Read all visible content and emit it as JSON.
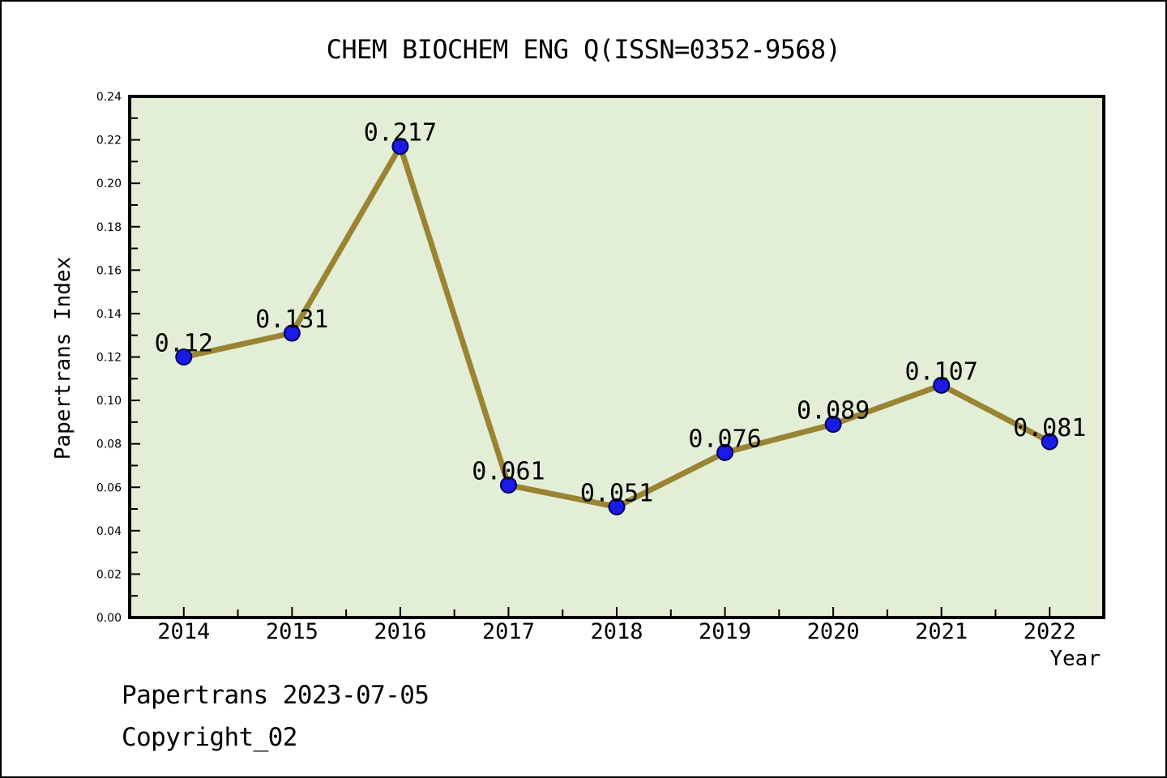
{
  "page": {
    "footer_line1": "Papertrans 2023-07-05",
    "footer_line2": "Copyright_02"
  },
  "chart_data": {
    "type": "line",
    "title": "CHEM BIOCHEM ENG Q(ISSN=0352-9568)",
    "xlabel": "Year",
    "ylabel": "Papertrans Index",
    "x": [
      2014,
      2015,
      2016,
      2017,
      2018,
      2019,
      2020,
      2021,
      2022
    ],
    "values": [
      0.12,
      0.131,
      0.217,
      0.061,
      0.051,
      0.076,
      0.089,
      0.107,
      0.081
    ],
    "point_labels": [
      "0.12",
      "0.131",
      "0.217",
      "0.061",
      "0.051",
      "0.076",
      "0.089",
      "0.107",
      "0.081"
    ],
    "xlim": [
      2013.5,
      2022.5
    ],
    "ylim": [
      0,
      0.24
    ],
    "y_major_step": 0.02,
    "y_minor_step": 0.01,
    "x_minor_step": 0.5,
    "grid": false,
    "legend_position": "none",
    "colors": {
      "plot_background": "#e3eed7",
      "line": "#998433",
      "marker_fill": "#1a1ae6",
      "marker_edge": "#000055",
      "axis": "#000000",
      "text": "#000000"
    }
  }
}
